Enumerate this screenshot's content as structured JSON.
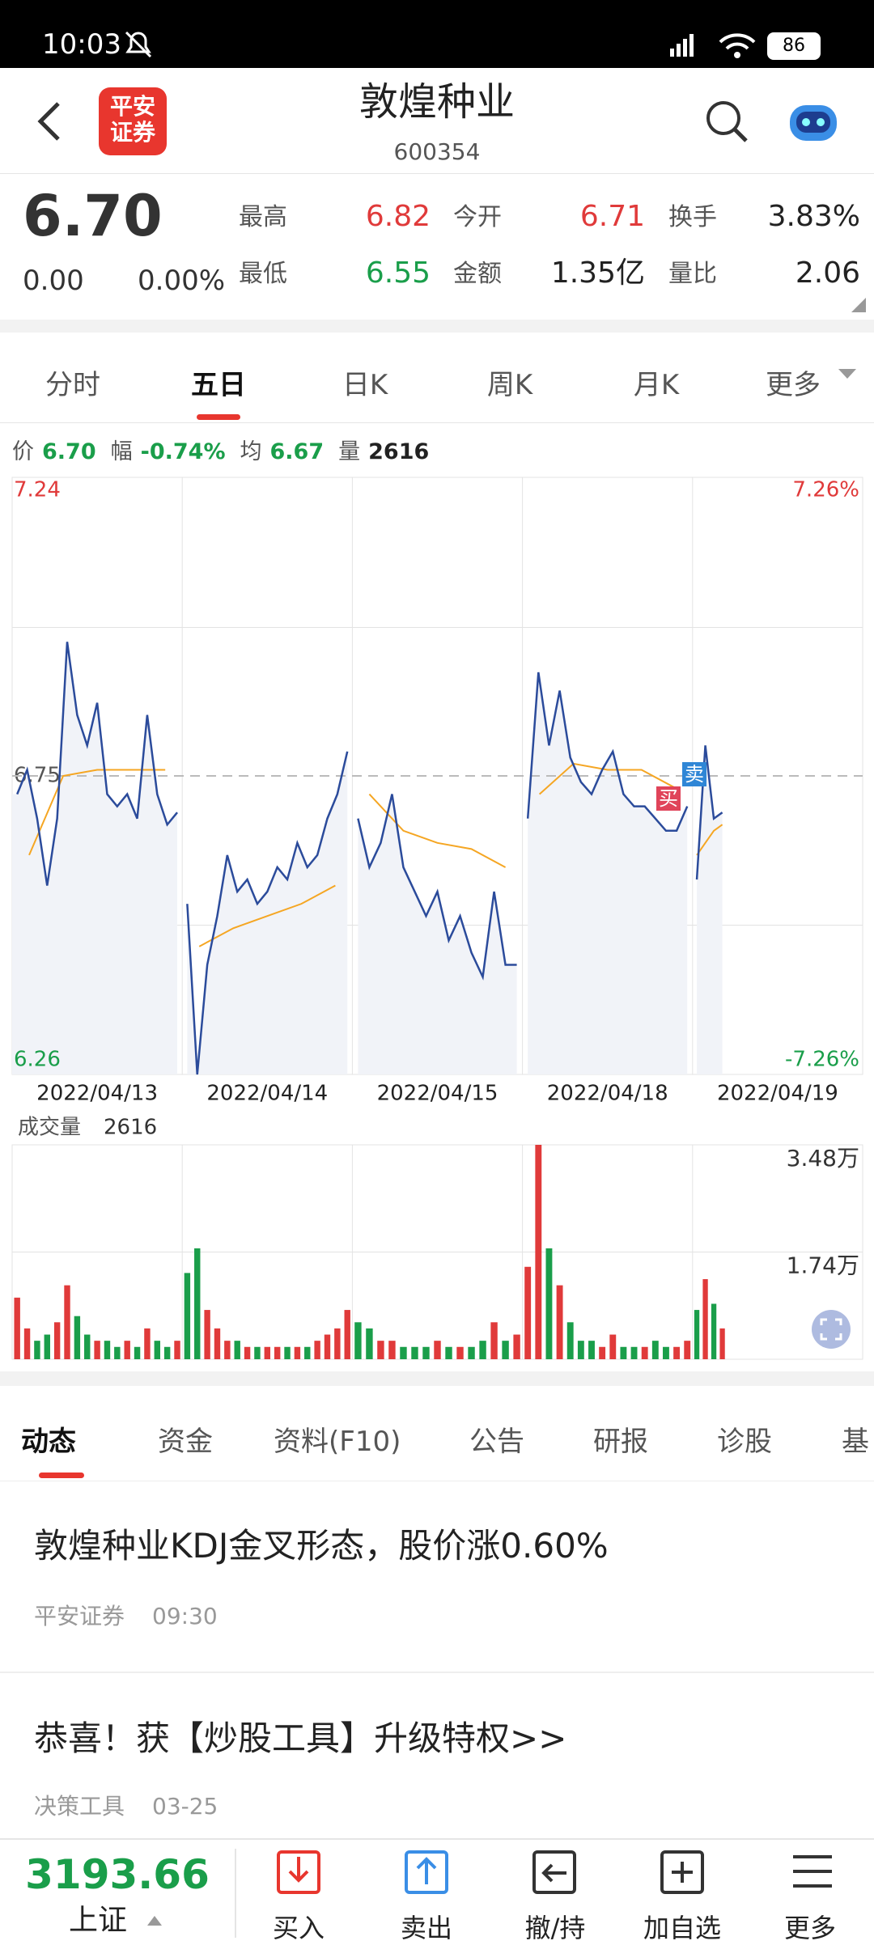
{
  "status_bar": {
    "time": "10:03",
    "battery": "86"
  },
  "header": {
    "logo": [
      "平安",
      "证券"
    ],
    "title": "敦煌种业",
    "code": "600354"
  },
  "quote": {
    "price": "6.70",
    "change": "0.00",
    "change_pct": "0.00%",
    "stats": [
      {
        "label": "最高",
        "value": "6.82",
        "color": "#e03a3a"
      },
      {
        "label": "今开",
        "value": "6.71",
        "color": "#e03a3a"
      },
      {
        "label": "换手",
        "value": "3.83%",
        "color": "#222222"
      },
      {
        "label": "最低",
        "value": "6.55",
        "color": "#1a9e4a"
      },
      {
        "label": "金额",
        "value": "1.35亿",
        "color": "#222222"
      },
      {
        "label": "量比",
        "value": "2.06",
        "color": "#222222"
      }
    ]
  },
  "tabs": [
    "分时",
    "五日",
    "日K",
    "周K",
    "月K",
    "更多"
  ],
  "chart_info": [
    {
      "label": "价",
      "value": "6.70",
      "color": "#1a9e4a"
    },
    {
      "label": "幅",
      "value": "-0.74%",
      "color": "#1a9e4a"
    },
    {
      "label": "均",
      "value": "6.67",
      "color": "#1a9e4a"
    },
    {
      "label": "量",
      "value": "2616",
      "color": "#222222"
    }
  ],
  "chart_data": [
    {
      "type": "line",
      "categories": [
        "2022/04/13",
        "2022/04/14",
        "2022/04/15",
        "2022/04/18",
        "2022/04/19"
      ],
      "ylim": [
        6.26,
        7.24
      ],
      "yticks": [
        7.24,
        6.75,
        6.26
      ],
      "pct_labels": [
        "7.26%",
        "-7.26%"
      ],
      "annotations": [
        "买",
        "卖"
      ],
      "series": [
        {
          "color": "#2b4b9b",
          "values": [
            [
              6.72,
              6.76,
              6.68,
              6.57,
              6.68,
              6.97,
              6.85,
              6.8,
              6.87,
              6.72,
              6.7,
              6.72,
              6.68,
              6.85,
              6.72,
              6.67,
              6.69
            ],
            [
              6.54,
              6.26,
              6.44,
              6.52,
              6.62,
              6.56,
              6.58,
              6.54,
              6.56,
              6.6,
              6.58,
              6.64,
              6.6,
              6.62,
              6.68,
              6.72,
              6.79
            ],
            [
              6.68,
              6.6,
              6.64,
              6.72,
              6.6,
              6.56,
              6.52,
              6.56,
              6.48,
              6.52,
              6.46,
              6.42,
              6.56,
              6.44,
              6.44
            ],
            [
              6.68,
              6.92,
              6.8,
              6.89,
              6.78,
              6.74,
              6.72,
              6.76,
              6.79,
              6.72,
              6.7,
              6.7,
              6.68,
              6.66,
              6.66,
              6.7
            ],
            [
              6.58,
              6.8,
              6.68,
              6.69
            ]
          ]
        },
        {
          "color": "#f5a623",
          "values": [
            [
              6.62,
              6.75,
              6.76,
              6.76,
              6.76
            ],
            [
              6.47,
              6.5,
              6.52,
              6.54,
              6.57
            ],
            [
              6.72,
              6.66,
              6.64,
              6.63,
              6.6
            ],
            [
              6.72,
              6.77,
              6.76,
              6.76,
              6.73
            ],
            [
              6.62,
              6.64,
              6.66,
              6.67
            ]
          ]
        }
      ]
    },
    {
      "type": "bar",
      "title": "成交量",
      "subtitle": "2616",
      "ylim": [
        0,
        3.48
      ],
      "yticks": [
        {
          "value": 3.48,
          "label": "3.48万"
        },
        {
          "value": 1.74,
          "label": "1.74万"
        }
      ],
      "colors": {
        "up": "#e03a3a",
        "down": "#1a9e4a"
      },
      "values": [
        [
          1.0,
          0.5,
          0.3,
          0.4,
          0.6,
          1.2,
          0.7,
          0.4,
          0.3,
          0.3,
          0.2,
          0.3,
          0.2,
          0.5,
          0.3,
          0.2,
          0.3
        ],
        [
          1.4,
          1.8,
          0.8,
          0.5,
          0.3,
          0.3,
          0.2,
          0.2,
          0.2,
          0.2,
          0.2,
          0.2,
          0.2,
          0.3,
          0.4,
          0.5,
          0.8
        ],
        [
          0.6,
          0.5,
          0.3,
          0.3,
          0.2,
          0.2,
          0.2,
          0.3,
          0.2,
          0.2,
          0.2,
          0.3,
          0.6,
          0.3,
          0.4
        ],
        [
          1.5,
          3.48,
          1.8,
          1.2,
          0.6,
          0.3,
          0.3,
          0.2,
          0.4,
          0.2,
          0.2,
          0.2,
          0.3,
          0.2,
          0.2,
          0.3
        ],
        [
          0.8,
          1.3,
          0.9,
          0.5
        ]
      ]
    }
  ],
  "news_tabs": [
    "动态",
    "资金",
    "资料(F10)",
    "公告",
    "研报",
    "诊股",
    "基"
  ],
  "news": [
    {
      "title": "敦煌种业KDJ金叉形态，股价涨0.60%",
      "source": "平安证券",
      "time": "09:30"
    },
    {
      "title": "恭喜！获【炒股工具】升级特权>>",
      "source": "决策工具",
      "time": "03-25"
    }
  ],
  "bottom_bar": {
    "index_value": "3193.66",
    "index_name": "上证",
    "buttons": [
      "买入",
      "卖出",
      "撤/持",
      "加自选",
      "更多"
    ]
  }
}
